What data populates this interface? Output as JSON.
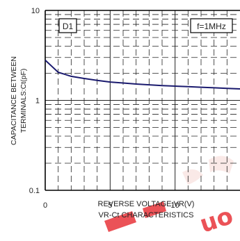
{
  "chart_data": {
    "type": "line",
    "ylabel_line1": "CAPACITANCE BETWEEN",
    "ylabel_line2": "TERMINALS:Ct(pF)",
    "xlabel": "REVERSE VOLTAGE:VR(V)",
    "caption": "VR-Ct CHARACTERISTICS",
    "x_scale": "linear",
    "y_scale": "log",
    "xlim": [
      0,
      15
    ],
    "ylim": [
      0.1,
      10
    ],
    "x_ticks": [
      0,
      5,
      10
    ],
    "x_tick_labels": [
      "0",
      "5",
      "10"
    ],
    "y_ticks": [
      0.1,
      1,
      10
    ],
    "y_tick_labels": [
      "0.1",
      "1",
      "10"
    ],
    "grid": "dashed minor, solid major",
    "annotations": [
      {
        "id": "device",
        "text": "D1",
        "position": "top-left"
      },
      {
        "id": "condition",
        "text": "f=1MHz",
        "position": "top-right"
      }
    ],
    "series": [
      {
        "color": "#1a1a6e",
        "x": [
          0,
          0.5,
          1,
          1.5,
          2,
          3,
          4,
          5,
          6,
          7,
          8,
          9,
          10,
          11,
          12,
          13,
          14,
          15
        ],
        "y": [
          2.8,
          2.4,
          2.05,
          1.95,
          1.85,
          1.75,
          1.67,
          1.6,
          1.56,
          1.52,
          1.49,
          1.46,
          1.44,
          1.42,
          1.4,
          1.38,
          1.36,
          1.34
        ]
      }
    ]
  },
  "watermark": {
    "text": "uo",
    "color": "#e8343a"
  },
  "colors": {
    "axis": "#000000",
    "grid": "#222222",
    "curve": "#1a1a6e"
  }
}
